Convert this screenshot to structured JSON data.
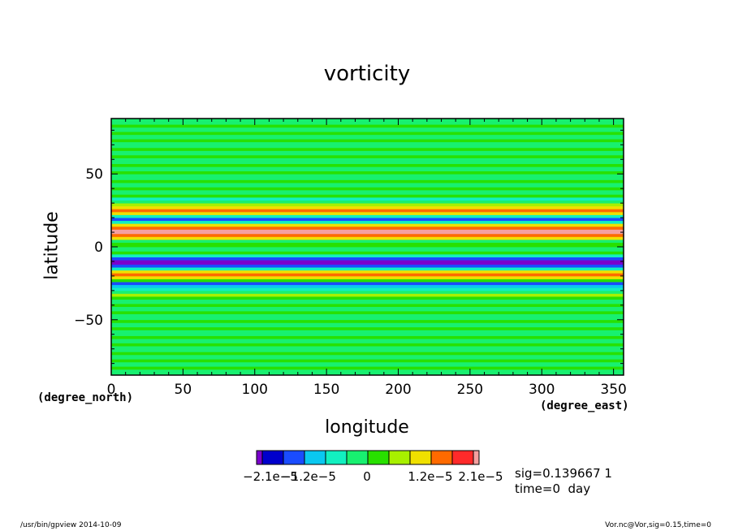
{
  "chart_data": {
    "type": "heatmap",
    "title": "vorticity",
    "xlabel": "longitude",
    "ylabel": "latitude",
    "x_unit": "(degree_east)",
    "y_unit": "(degree_north)",
    "xlim": [
      0,
      357
    ],
    "ylim": [
      -88,
      88
    ],
    "x_ticks": [
      0,
      50,
      100,
      150,
      200,
      250,
      300,
      350
    ],
    "y_ticks": [
      50,
      0,
      -50
    ],
    "y_tick_labels": [
      "50",
      "0",
      "−50"
    ],
    "colorbar": {
      "colors": [
        "#7a00cc",
        "#0000cc",
        "#1a4cff",
        "#0ac8f0",
        "#12f0c0",
        "#18f070",
        "#28e000",
        "#a8f000",
        "#f0e000",
        "#ff6a00",
        "#ff2a2a",
        "#f5a0a0"
      ],
      "tick_labels": [
        "−2.1e−5",
        "−1.2e−5",
        "0",
        "1.2e−5",
        "2.1e−5"
      ]
    },
    "bands": [
      {
        "from": -88,
        "to": -84,
        "color": "#18f070"
      },
      {
        "from": -84,
        "to": -82,
        "color": "#28e000"
      },
      {
        "from": -82,
        "to": -79,
        "color": "#18f070"
      },
      {
        "from": -79,
        "to": -77,
        "color": "#28e000"
      },
      {
        "from": -77,
        "to": -74,
        "color": "#18f070"
      },
      {
        "from": -74,
        "to": -72,
        "color": "#28e000"
      },
      {
        "from": -72,
        "to": -68,
        "color": "#18f070"
      },
      {
        "from": -68,
        "to": -66,
        "color": "#28e000"
      },
      {
        "from": -66,
        "to": -63,
        "color": "#18f070"
      },
      {
        "from": -63,
        "to": -61,
        "color": "#28e000"
      },
      {
        "from": -61,
        "to": -57,
        "color": "#18f070"
      },
      {
        "from": -57,
        "to": -55,
        "color": "#28e000"
      },
      {
        "from": -55,
        "to": -52,
        "color": "#18f070"
      },
      {
        "from": -52,
        "to": -50,
        "color": "#28e000"
      },
      {
        "from": -50,
        "to": -46,
        "color": "#18f070"
      },
      {
        "from": -46,
        "to": -44,
        "color": "#28e000"
      },
      {
        "from": -44,
        "to": -41,
        "color": "#18f070"
      },
      {
        "from": -41,
        "to": -39,
        "color": "#28e000"
      },
      {
        "from": -39,
        "to": -36,
        "color": "#18f070"
      },
      {
        "from": -36,
        "to": -34,
        "color": "#28e000"
      },
      {
        "from": -34,
        "to": -32,
        "color": "#a8f000"
      },
      {
        "from": -32,
        "to": -30,
        "color": "#18f070"
      },
      {
        "from": -30,
        "to": -28,
        "color": "#12f0c0"
      },
      {
        "from": -28,
        "to": -26,
        "color": "#0ac8f0"
      },
      {
        "from": -26,
        "to": -24,
        "color": "#1a4cff"
      },
      {
        "from": -24,
        "to": -22,
        "color": "#28e000"
      },
      {
        "from": -22,
        "to": -20,
        "color": "#f0e000"
      },
      {
        "from": -20,
        "to": -18,
        "color": "#ff6a00"
      },
      {
        "from": -18,
        "to": -16,
        "color": "#f0e000"
      },
      {
        "from": -16,
        "to": -14,
        "color": "#12f0c0"
      },
      {
        "from": -14,
        "to": -12,
        "color": "#1a4cff"
      },
      {
        "from": -12,
        "to": -9,
        "color": "#7a00cc"
      },
      {
        "from": -9,
        "to": -7,
        "color": "#1a4cff"
      },
      {
        "from": -7,
        "to": -5,
        "color": "#12f0c0"
      },
      {
        "from": -5,
        "to": -3,
        "color": "#28e000"
      },
      {
        "from": -3,
        "to": 0,
        "color": "#18f070"
      },
      {
        "from": 0,
        "to": 3,
        "color": "#28e000"
      },
      {
        "from": 3,
        "to": 5,
        "color": "#18f070"
      },
      {
        "from": 5,
        "to": 7,
        "color": "#f0e000"
      },
      {
        "from": 7,
        "to": 9,
        "color": "#ff6a00"
      },
      {
        "from": 9,
        "to": 12,
        "color": "#f5a0a0"
      },
      {
        "from": 12,
        "to": 14,
        "color": "#ff6a00"
      },
      {
        "from": 14,
        "to": 16,
        "color": "#f0e000"
      },
      {
        "from": 16,
        "to": 18,
        "color": "#12f0c0"
      },
      {
        "from": 18,
        "to": 20,
        "color": "#1a4cff"
      },
      {
        "from": 20,
        "to": 22,
        "color": "#12f0c0"
      },
      {
        "from": 22,
        "to": 24,
        "color": "#f0e000"
      },
      {
        "from": 24,
        "to": 26,
        "color": "#ff6a00"
      },
      {
        "from": 26,
        "to": 28,
        "color": "#f0e000"
      },
      {
        "from": 28,
        "to": 30,
        "color": "#a8f000"
      },
      {
        "from": 30,
        "to": 32,
        "color": "#18f070"
      },
      {
        "from": 32,
        "to": 34,
        "color": "#12f0c0"
      },
      {
        "from": 34,
        "to": 36,
        "color": "#28e000"
      },
      {
        "from": 36,
        "to": 39,
        "color": "#18f070"
      },
      {
        "from": 39,
        "to": 41,
        "color": "#28e000"
      },
      {
        "from": 41,
        "to": 44,
        "color": "#18f070"
      },
      {
        "from": 44,
        "to": 46,
        "color": "#28e000"
      },
      {
        "from": 46,
        "to": 50,
        "color": "#18f070"
      },
      {
        "from": 50,
        "to": 52,
        "color": "#28e000"
      },
      {
        "from": 52,
        "to": 55,
        "color": "#18f070"
      },
      {
        "from": 55,
        "to": 57,
        "color": "#28e000"
      },
      {
        "from": 57,
        "to": 61,
        "color": "#18f070"
      },
      {
        "from": 61,
        "to": 63,
        "color": "#28e000"
      },
      {
        "from": 63,
        "to": 66,
        "color": "#18f070"
      },
      {
        "from": 66,
        "to": 68,
        "color": "#28e000"
      },
      {
        "from": 68,
        "to": 72,
        "color": "#18f070"
      },
      {
        "from": 72,
        "to": 74,
        "color": "#28e000"
      },
      {
        "from": 74,
        "to": 77,
        "color": "#18f070"
      },
      {
        "from": 77,
        "to": 79,
        "color": "#28e000"
      },
      {
        "from": 79,
        "to": 82,
        "color": "#18f070"
      },
      {
        "from": 82,
        "to": 84,
        "color": "#28e000"
      },
      {
        "from": 84,
        "to": 88,
        "color": "#18f070"
      }
    ]
  },
  "annotation": {
    "line1": "sig=0.139667 1",
    "line2": "time=0  day"
  },
  "footer": {
    "left": "/usr/bin/gpview  2014-10-09",
    "right": "Vor.nc@Vor,sig=0.15,time=0"
  }
}
